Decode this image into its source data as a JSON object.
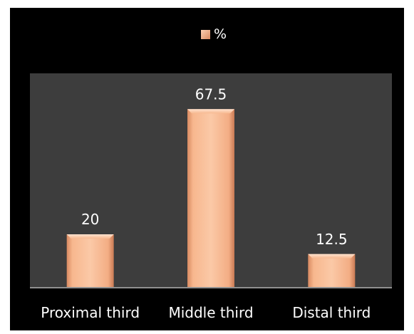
{
  "chart_data": {
    "type": "bar",
    "categories": [
      "Proximal third",
      "Middle third",
      "Distal third"
    ],
    "series": [
      {
        "name": "%",
        "values": [
          20,
          67.5,
          12.5
        ]
      }
    ],
    "data_labels": [
      "20",
      "67.5",
      "12.5"
    ],
    "legend_position": "top",
    "ylim": [
      0,
      75
    ],
    "grid": false,
    "colors": {
      "outer_background": "#000000",
      "plot_background": "#3d3d3d",
      "bar_fill_light": "#fbc7a3",
      "bar_fill_mid": "#f2a57c",
      "bar_fill_dark": "#c97a54",
      "text": "#ffffff",
      "axis_line": "#bfbfbf"
    }
  }
}
